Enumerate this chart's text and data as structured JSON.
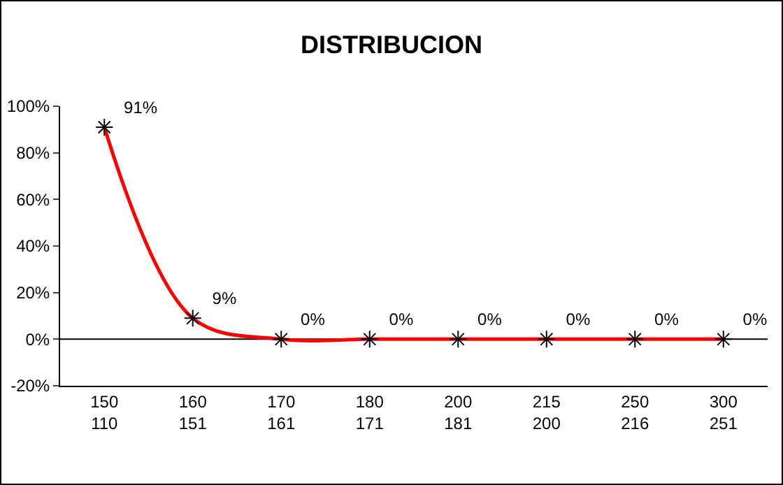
{
  "chart_data": {
    "type": "line",
    "title": "DISTRIBUCION",
    "categories": [
      "150\n110",
      "160\n151",
      "170\n161",
      "180\n171",
      "200\n181",
      "215\n200",
      "250\n216",
      "300\n251"
    ],
    "series": [
      {
        "color": "#ff0000",
        "values": [
          91,
          9,
          0,
          0,
          0,
          0,
          0,
          0
        ],
        "value_labels": [
          "91%",
          "9%",
          "0%",
          "0%",
          "0%",
          "0%",
          "0%",
          "0%"
        ]
      }
    ],
    "ylim": [
      -20,
      100
    ],
    "yticks": [
      {
        "value": -20,
        "label": "-20%"
      },
      {
        "value": 0,
        "label": "0%"
      },
      {
        "value": 20,
        "label": "20%"
      },
      {
        "value": 40,
        "label": "40%"
      },
      {
        "value": 60,
        "label": "60%"
      },
      {
        "value": 80,
        "label": "80%"
      },
      {
        "value": 100,
        "label": "100%"
      }
    ],
    "ref_lines": [
      {
        "axis": "y",
        "value": 0,
        "color": "#000000"
      }
    ],
    "marker": "cross",
    "grid": false
  }
}
